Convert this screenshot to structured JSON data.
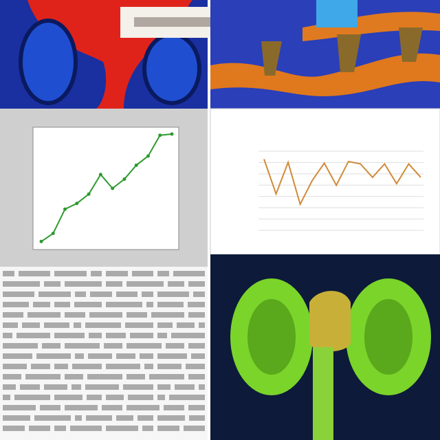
{
  "chart_data": [
    {
      "type": "line",
      "color": "#2e9a2e",
      "markers": true,
      "grid": false,
      "ylim": [
        0,
        10
      ],
      "values": [
        0.4,
        1.1,
        3.2,
        3.7,
        4.5,
        6.2,
        5.0,
        5.8,
        7.0,
        7.8,
        9.6,
        9.7
      ]
    },
    {
      "type": "line",
      "color": "#d08a3a",
      "markers": false,
      "grid": true,
      "ylim": [
        0,
        10
      ],
      "values": [
        9.0,
        4.6,
        8.6,
        3.3,
        6.3,
        8.5,
        5.7,
        8.7,
        8.4,
        6.7,
        8.4,
        5.9,
        8.4,
        6.7
      ]
    }
  ]
}
